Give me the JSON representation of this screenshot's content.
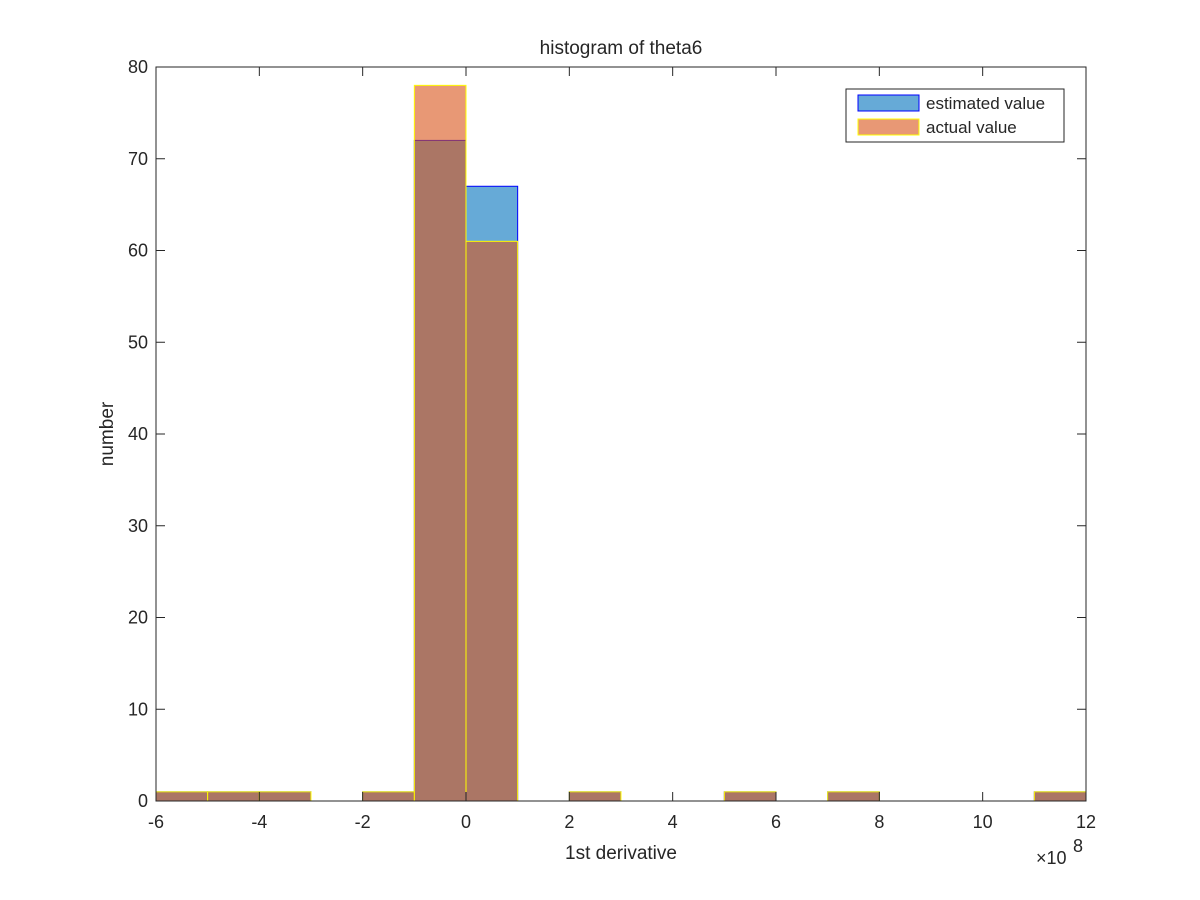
{
  "chart_data": {
    "type": "bar",
    "title": "histogram of theta6",
    "xlabel": "1st derivative",
    "ylabel": "number",
    "xlim": [
      -6,
      12
    ],
    "ylim": [
      0,
      80
    ],
    "x_multiplier": {
      "base": "×10",
      "exponent": "8"
    },
    "xticks": [
      -6,
      -4,
      -2,
      0,
      2,
      4,
      6,
      8,
      10,
      12
    ],
    "yticks": [
      0,
      10,
      20,
      30,
      40,
      50,
      60,
      70,
      80
    ],
    "bin_edges": [
      -6,
      -5,
      -4,
      -3,
      -2,
      -1,
      0,
      1,
      2,
      3,
      4,
      5,
      6,
      7,
      8,
      9,
      10,
      11,
      12
    ],
    "series": [
      {
        "name": "estimated value",
        "fill": "#0072BD",
        "edge": "#0000FF",
        "alpha": 0.6,
        "values": [
          1,
          1,
          1,
          0,
          1,
          72,
          67,
          0,
          1,
          0,
          0,
          1,
          0,
          1,
          0,
          0,
          0,
          1
        ]
      },
      {
        "name": "actual value",
        "fill": "#D95319",
        "edge": "#FFFF00",
        "alpha": 0.6,
        "values": [
          1,
          1,
          1,
          0,
          1,
          78,
          61,
          0,
          1,
          0,
          0,
          1,
          0,
          1,
          0,
          0,
          0,
          1
        ]
      }
    ],
    "legend_position": "top-right",
    "grid": false
  }
}
